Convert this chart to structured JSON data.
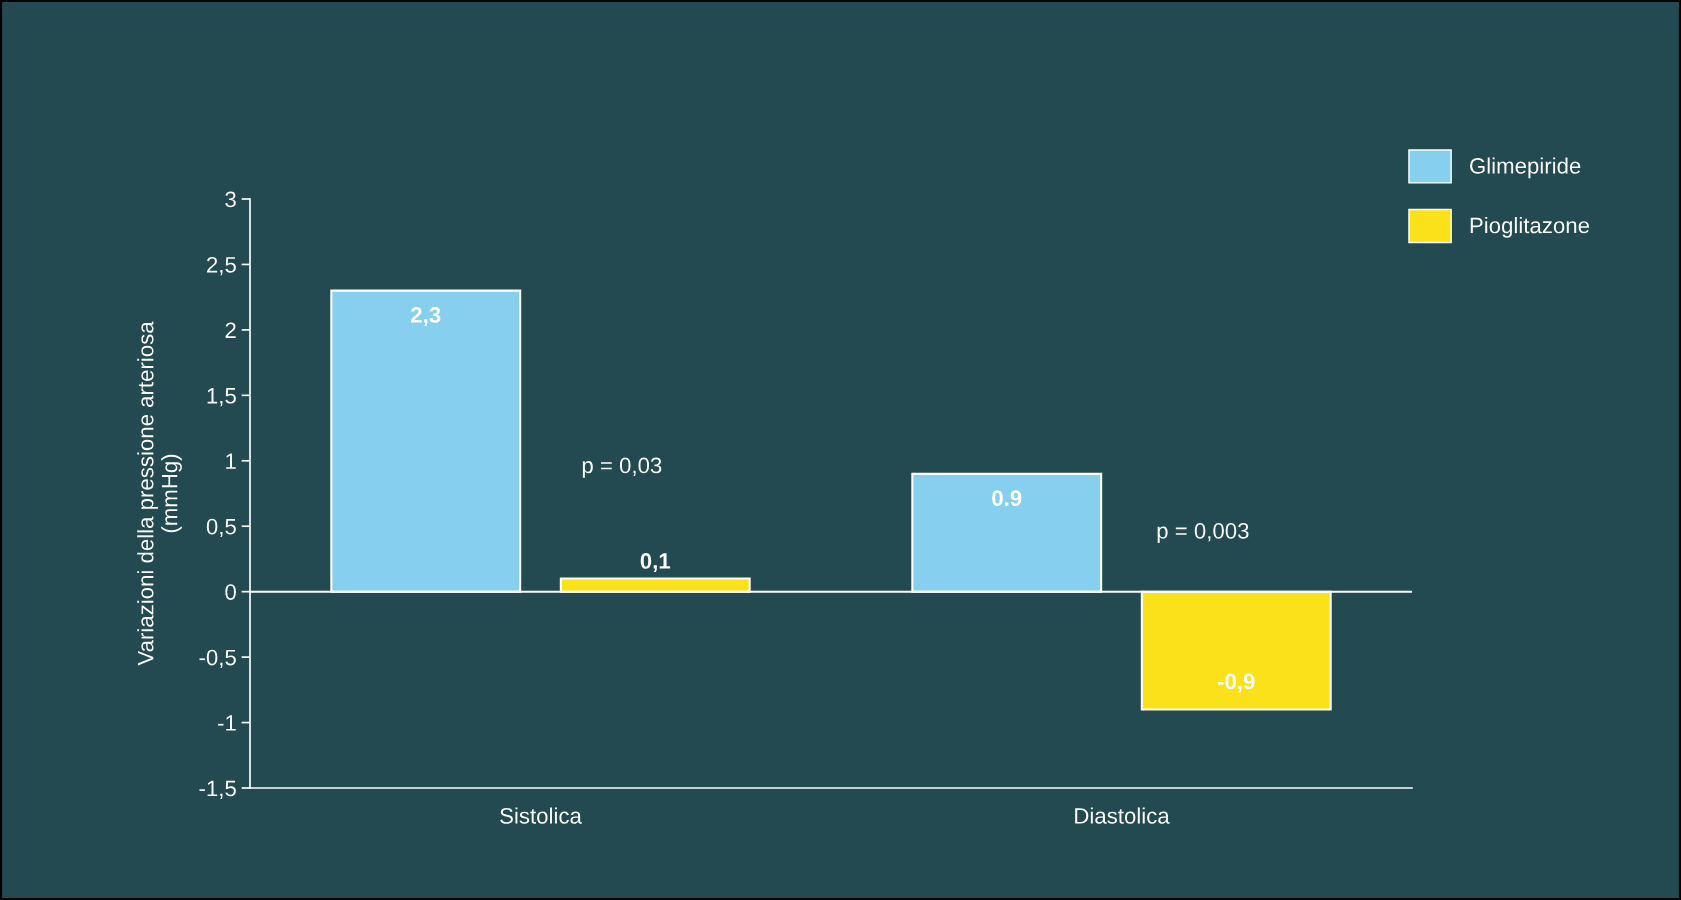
{
  "chart_data": {
    "type": "bar",
    "ylabel": "Variazioni della pressione arteriosa\n(mmHg)",
    "categories": [
      "Sistolica",
      "Diastolica"
    ],
    "series": [
      {
        "name": "Glimepiride",
        "color": "#87cfee",
        "values": [
          2.3,
          0.9
        ],
        "value_labels": [
          "2,3",
          "0.9"
        ]
      },
      {
        "name": "Pioglitazone",
        "color": "#fbe11a",
        "values": [
          0.1,
          -0.9
        ],
        "value_labels": [
          "0,1",
          "-0,9"
        ]
      }
    ],
    "ylim": [
      -1.5,
      3
    ],
    "yticks": [
      {
        "value": -1.5,
        "label": "-1,5"
      },
      {
        "value": -1,
        "label": "-1"
      },
      {
        "value": -0.5,
        "label": "-0,5"
      },
      0,
      {
        "value": 0.5,
        "label": "0,5"
      },
      1,
      {
        "value": 1.5,
        "label": "1,5"
      },
      2,
      {
        "value": 2.5,
        "label": "2,5"
      },
      3
    ],
    "ref_lines": [
      {
        "axis": "y",
        "value": 0,
        "color": "#ffffff"
      }
    ],
    "annotations": [
      "p = 0,03",
      "p = 0,003"
    ],
    "legend": "top right",
    "grid": false
  }
}
